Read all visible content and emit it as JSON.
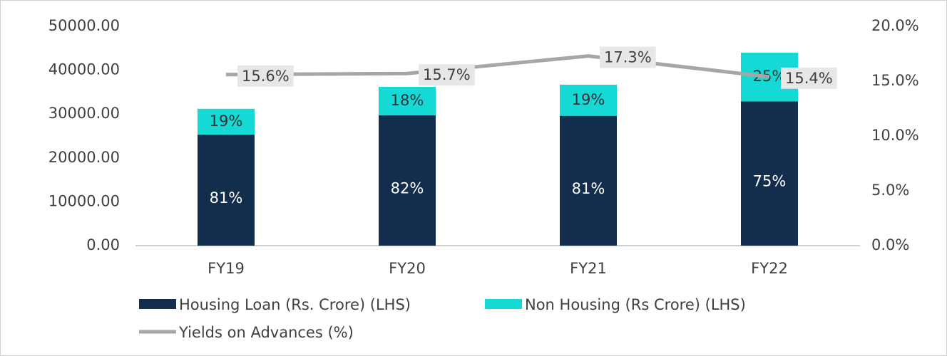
{
  "chart_data": {
    "type": "bar",
    "stacked": true,
    "categories": [
      "FY19",
      "FY20",
      "FY21",
      "FY22"
    ],
    "series": [
      {
        "name": "Housing Loan (Rs. Crore) (LHS)",
        "color": "#132d4c",
        "values": [
          25300,
          29700,
          29600,
          32900
        ],
        "data_labels": [
          "81%",
          "82%",
          "81%",
          "75%"
        ],
        "label_color": "#ffffff"
      },
      {
        "name": "Non Housing (Rs Crore) (LHS)",
        "color": "#14d9d4",
        "values": [
          5900,
          6500,
          7100,
          11100
        ],
        "data_labels": [
          "19%",
          "18%",
          "19%",
          "25%"
        ],
        "label_color": "#333333"
      },
      {
        "name": "Yields on Advances (%)",
        "type": "line",
        "axis": "y2",
        "color": "#a6a6a6",
        "values": [
          15.6,
          15.7,
          17.3,
          15.4
        ],
        "value_labels": [
          "15.6%",
          "15.7%",
          "17.3%",
          "15.4%"
        ]
      }
    ],
    "ylim": [
      0,
      50000
    ],
    "yticks": [
      {
        "value": 0,
        "label": "0.00"
      },
      {
        "value": 10000,
        "label": "10000.00"
      },
      {
        "value": 20000,
        "label": "20000.00"
      },
      {
        "value": 30000,
        "label": "30000.00"
      },
      {
        "value": 40000,
        "label": "40000.00"
      },
      {
        "value": 50000,
        "label": "50000.00"
      }
    ],
    "y2lim": [
      0,
      20
    ],
    "y2ticks": [
      {
        "value": 0,
        "label": "0.0%"
      },
      {
        "value": 5,
        "label": "5.0%"
      },
      {
        "value": 10,
        "label": "10.0%"
      },
      {
        "value": 15,
        "label": "15.0%"
      },
      {
        "value": 20,
        "label": "20.0%"
      }
    ],
    "grid": false,
    "legend": "bottom"
  }
}
